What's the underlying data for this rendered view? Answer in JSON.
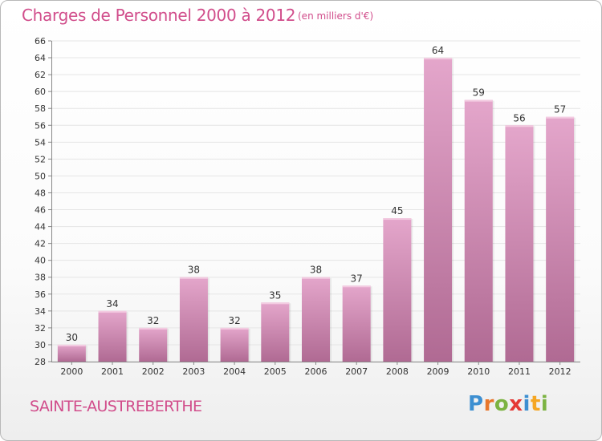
{
  "title": "Charges de Personnel 2000 à 2012",
  "subtitle": "(en milliers d'€)",
  "commune": "SAINTE-AUSTREBERTHE",
  "logo_text": "Proxiti",
  "colors": {
    "accent": "#d14d8b",
    "bar_top": "#e4a6cb",
    "bar_bottom": "#b06a93",
    "grid": "#e5e5e5"
  },
  "chart_data": {
    "type": "bar",
    "categories": [
      "2000",
      "2001",
      "2002",
      "2003",
      "2004",
      "2005",
      "2006",
      "2007",
      "2008",
      "2009",
      "2010",
      "2011",
      "2012"
    ],
    "values": [
      30,
      34,
      32,
      38,
      32,
      35,
      38,
      37,
      45,
      64,
      59,
      56,
      57
    ],
    "ylim": [
      28,
      66
    ],
    "yticks": [
      28,
      30,
      32,
      34,
      36,
      38,
      40,
      42,
      44,
      46,
      48,
      50,
      52,
      54,
      56,
      58,
      60,
      62,
      64,
      66
    ],
    "data_labels": [
      "30",
      "34",
      "32",
      "38",
      "32",
      "35",
      "38",
      "37",
      "45",
      "64",
      "59",
      "56",
      "57"
    ],
    "grid": true,
    "legend": "none"
  }
}
